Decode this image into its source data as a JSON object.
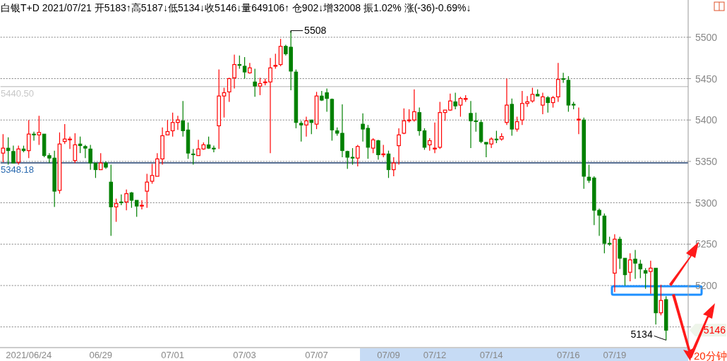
{
  "chart_data": {
    "type": "candlestick",
    "title": "白银T+D 2021/07/21 开5183↑高5187↓低5134↓收5146↓量649106↑ 仓902↓增32008 振1.02% 涨(-36)-0.69%↓",
    "categories": [
      null,
      null,
      null,
      null,
      null,
      "2021/06/24",
      null,
      null,
      null,
      null,
      null,
      null,
      null,
      null,
      null,
      null,
      null,
      null,
      null,
      "06/29",
      null,
      null,
      null,
      null,
      null,
      null,
      null,
      null,
      null,
      null,
      null,
      null,
      null,
      "07/01",
      null,
      null,
      null,
      null,
      null,
      null,
      null,
      null,
      null,
      null,
      null,
      null,
      null,
      "07/03",
      null,
      null,
      null,
      null,
      null,
      null,
      null,
      null,
      null,
      null,
      null,
      null,
      null,
      "07/07",
      null,
      null,
      null,
      null,
      null,
      null,
      null,
      null,
      null,
      null,
      null,
      null,
      null,
      "07/09",
      null,
      null,
      null,
      null,
      null,
      null,
      null,
      null,
      "07/12",
      null,
      null,
      null,
      null,
      null,
      null,
      null,
      null,
      null,
      null,
      "07/14",
      null,
      null,
      null,
      null,
      null,
      null,
      null,
      null,
      null,
      null,
      null,
      null,
      null,
      null,
      "07/16",
      null,
      null,
      null,
      null,
      null,
      null,
      null,
      null,
      "07/19",
      null,
      null,
      null,
      null,
      null,
      null,
      null,
      null,
      null,
      null
    ],
    "ohlc": [
      [
        5360,
        5383,
        5349,
        5366
      ],
      [
        5366,
        5379,
        5346,
        5363
      ],
      [
        5362,
        5369,
        5348,
        5348
      ],
      [
        5349,
        5369,
        5346,
        5365
      ],
      [
        5365,
        5369,
        5361,
        5363
      ],
      [
        5363,
        5400,
        5354,
        5383
      ],
      [
        5383,
        5386,
        5375,
        5382
      ],
      [
        5382,
        5405,
        5370,
        5385
      ],
      [
        5383,
        5383,
        5355,
        5357
      ],
      [
        5357,
        5360,
        5348,
        5354
      ],
      [
        5354,
        5363,
        5295,
        5314
      ],
      [
        5315,
        5385,
        5311,
        5371
      ],
      [
        5374,
        5395,
        5371,
        5377
      ],
      [
        5376,
        5380,
        5365,
        5377
      ],
      [
        5351,
        5384,
        5348,
        5370
      ],
      [
        5371,
        5380,
        5360,
        5369
      ],
      [
        5368,
        5370,
        5354,
        5366
      ],
      [
        5365,
        5370,
        5340,
        5348
      ],
      [
        5348,
        5348,
        5330,
        5340
      ],
      [
        5340,
        5360,
        5340,
        5348
      ],
      [
        5348,
        5350,
        5341,
        5343
      ],
      [
        5325,
        5346,
        5260,
        5295
      ],
      [
        5295,
        5305,
        5277,
        5299
      ],
      [
        5301,
        5310,
        5297,
        5300
      ],
      [
        5301,
        5316,
        5291,
        5311
      ],
      [
        5312,
        5313,
        5294,
        5303
      ],
      [
        5303,
        5303,
        5283,
        5296
      ],
      [
        5296,
        5303,
        5292,
        5297
      ],
      [
        5314,
        5335,
        5294,
        5325
      ],
      [
        5326,
        5347,
        5323,
        5333
      ],
      [
        5332,
        5360,
        5332,
        5353
      ],
      [
        5353,
        5391,
        5346,
        5381
      ],
      [
        5382,
        5400,
        5382,
        5386
      ],
      [
        5387,
        5409,
        5380,
        5397
      ],
      [
        5397,
        5405,
        5388,
        5400
      ],
      [
        5399,
        5423,
        5380,
        5387
      ],
      [
        5388,
        5397,
        5353,
        5360
      ],
      [
        5359,
        5365,
        5346,
        5358
      ],
      [
        5357,
        5376,
        5357,
        5365
      ],
      [
        5365,
        5373,
        5364,
        5370
      ],
      [
        5370,
        5380,
        5365,
        5366
      ],
      [
        5366,
        5369,
        5361,
        5365
      ],
      [
        5393,
        5461,
        5365,
        5429
      ],
      [
        5429,
        5439,
        5403,
        5433
      ],
      [
        5434,
        5451,
        5422,
        5450
      ],
      [
        5451,
        5479,
        5438,
        5467
      ],
      [
        5467,
        5478,
        5462,
        5466
      ],
      [
        5465,
        5476,
        5450,
        5458
      ],
      [
        5457,
        5469,
        5456,
        5463
      ],
      [
        5446,
        5462,
        5428,
        5441
      ],
      [
        5441,
        5451,
        5430,
        5444
      ],
      [
        5445,
        5450,
        5442,
        5446
      ],
      [
        5446,
        5475,
        5360,
        5463
      ],
      [
        5465,
        5480,
        5462,
        5466
      ],
      [
        5467,
        5498,
        5465,
        5489
      ],
      [
        5489,
        5491,
        5478,
        5480
      ],
      [
        5488,
        5508,
        5436,
        5459
      ],
      [
        5458,
        5461,
        5390,
        5397
      ],
      [
        5396,
        5399,
        5374,
        5394
      ],
      [
        5394,
        5404,
        5380,
        5399
      ],
      [
        5400,
        5400,
        5383,
        5397
      ],
      [
        5395,
        5434,
        5389,
        5429
      ],
      [
        5429,
        5435,
        5423,
        5424
      ],
      [
        5433,
        5438,
        5410,
        5426
      ],
      [
        5425,
        5426,
        5375,
        5388
      ],
      [
        5387,
        5391,
        5381,
        5384
      ],
      [
        5384,
        5419,
        5355,
        5363
      ],
      [
        5362,
        5363,
        5341,
        5355
      ],
      [
        5355,
        5366,
        5346,
        5354
      ],
      [
        5354,
        5370,
        5344,
        5368
      ],
      [
        5395,
        5408,
        5374,
        5389
      ],
      [
        5390,
        5394,
        5353,
        5367
      ],
      [
        5366,
        5378,
        5360,
        5376
      ],
      [
        5375,
        5376,
        5352,
        5358
      ],
      [
        5358,
        5370,
        5355,
        5359
      ],
      [
        5359,
        5363,
        5330,
        5340
      ],
      [
        5340,
        5355,
        5332,
        5348
      ],
      [
        5369,
        5390,
        5346,
        5382
      ],
      [
        5384,
        5414,
        5383,
        5399
      ],
      [
        5399,
        5413,
        5397,
        5400
      ],
      [
        5400,
        5437,
        5398,
        5410
      ],
      [
        5409,
        5415,
        5381,
        5387
      ],
      [
        5387,
        5390,
        5364,
        5367
      ],
      [
        5370,
        5378,
        5363,
        5375
      ],
      [
        5365,
        5397,
        5360,
        5366
      ],
      [
        5367,
        5422,
        5365,
        5409
      ],
      [
        5409,
        5412,
        5399,
        5412
      ],
      [
        5412,
        5432,
        5411,
        5423
      ],
      [
        5422,
        5433,
        5413,
        5417
      ],
      [
        5418,
        5428,
        5404,
        5426
      ],
      [
        5425,
        5430,
        5422,
        5426
      ],
      [
        5408,
        5423,
        5366,
        5399
      ],
      [
        5399,
        5409,
        5386,
        5398
      ],
      [
        5397,
        5400,
        5372,
        5374
      ],
      [
        5373,
        5373,
        5355,
        5371
      ],
      [
        5371,
        5379,
        5366,
        5377
      ],
      [
        5377,
        5387,
        5372,
        5376
      ],
      [
        5377,
        5384,
        5375,
        5380
      ],
      [
        5397,
        5450,
        5394,
        5418
      ],
      [
        5419,
        5426,
        5381,
        5389
      ],
      [
        5389,
        5404,
        5386,
        5398
      ],
      [
        5400,
        5435,
        5394,
        5420
      ],
      [
        5420,
        5429,
        5416,
        5422
      ],
      [
        5423,
        5439,
        5421,
        5431
      ],
      [
        5431,
        5437,
        5429,
        5429
      ],
      [
        5418,
        5433,
        5407,
        5428
      ],
      [
        5427,
        5429,
        5409,
        5421
      ],
      [
        5421,
        5429,
        5415,
        5427
      ],
      [
        5428,
        5469,
        5422,
        5449
      ],
      [
        5450,
        5457,
        5445,
        5449
      ],
      [
        5448,
        5453,
        5410,
        5418
      ],
      [
        5419,
        5422,
        5413,
        5418
      ],
      [
        5400,
        5415,
        5383,
        5401
      ],
      [
        5400,
        5403,
        5317,
        5332
      ],
      [
        5331,
        5346,
        5324,
        5327
      ],
      [
        5330,
        5332,
        5273,
        5291
      ],
      [
        5291,
        5293,
        5260,
        5285
      ],
      [
        5284,
        5287,
        5239,
        5251
      ],
      [
        5251,
        5259,
        5248,
        5250
      ],
      [
        5215,
        5262,
        5192,
        5256
      ],
      [
        5256,
        5259,
        5220,
        5233
      ],
      [
        5233,
        5233,
        5200,
        5213
      ],
      [
        5216,
        5239,
        5205,
        5231
      ],
      [
        5232,
        5243,
        5208,
        5227
      ],
      [
        5226,
        5231,
        5209,
        5220
      ],
      [
        5218,
        5221,
        5196,
        5215
      ],
      [
        5217,
        5230,
        5190,
        5221
      ],
      [
        5221,
        5221,
        5153,
        5167
      ],
      [
        5167,
        5201,
        5164,
        5182
      ],
      [
        5183,
        5187,
        5134,
        5146
      ]
    ],
    "ylim": [
      5125,
      5545
    ],
    "yticks": [
      {
        "value": 5150,
        "label": null
      },
      5200,
      5250,
      5300,
      5350,
      5400,
      5450,
      5500
    ],
    "grid": "y",
    "ref_lines": [
      {
        "axis": "y",
        "value": 5440.5,
        "label": "5440.50",
        "color": "#cccccc"
      },
      {
        "axis": "y",
        "value": 5348.18,
        "label": "5348.18",
        "color": "#1f3f6f"
      }
    ],
    "annotations": [
      "5508",
      "5134",
      "5146",
      "20分钟"
    ]
  }
}
